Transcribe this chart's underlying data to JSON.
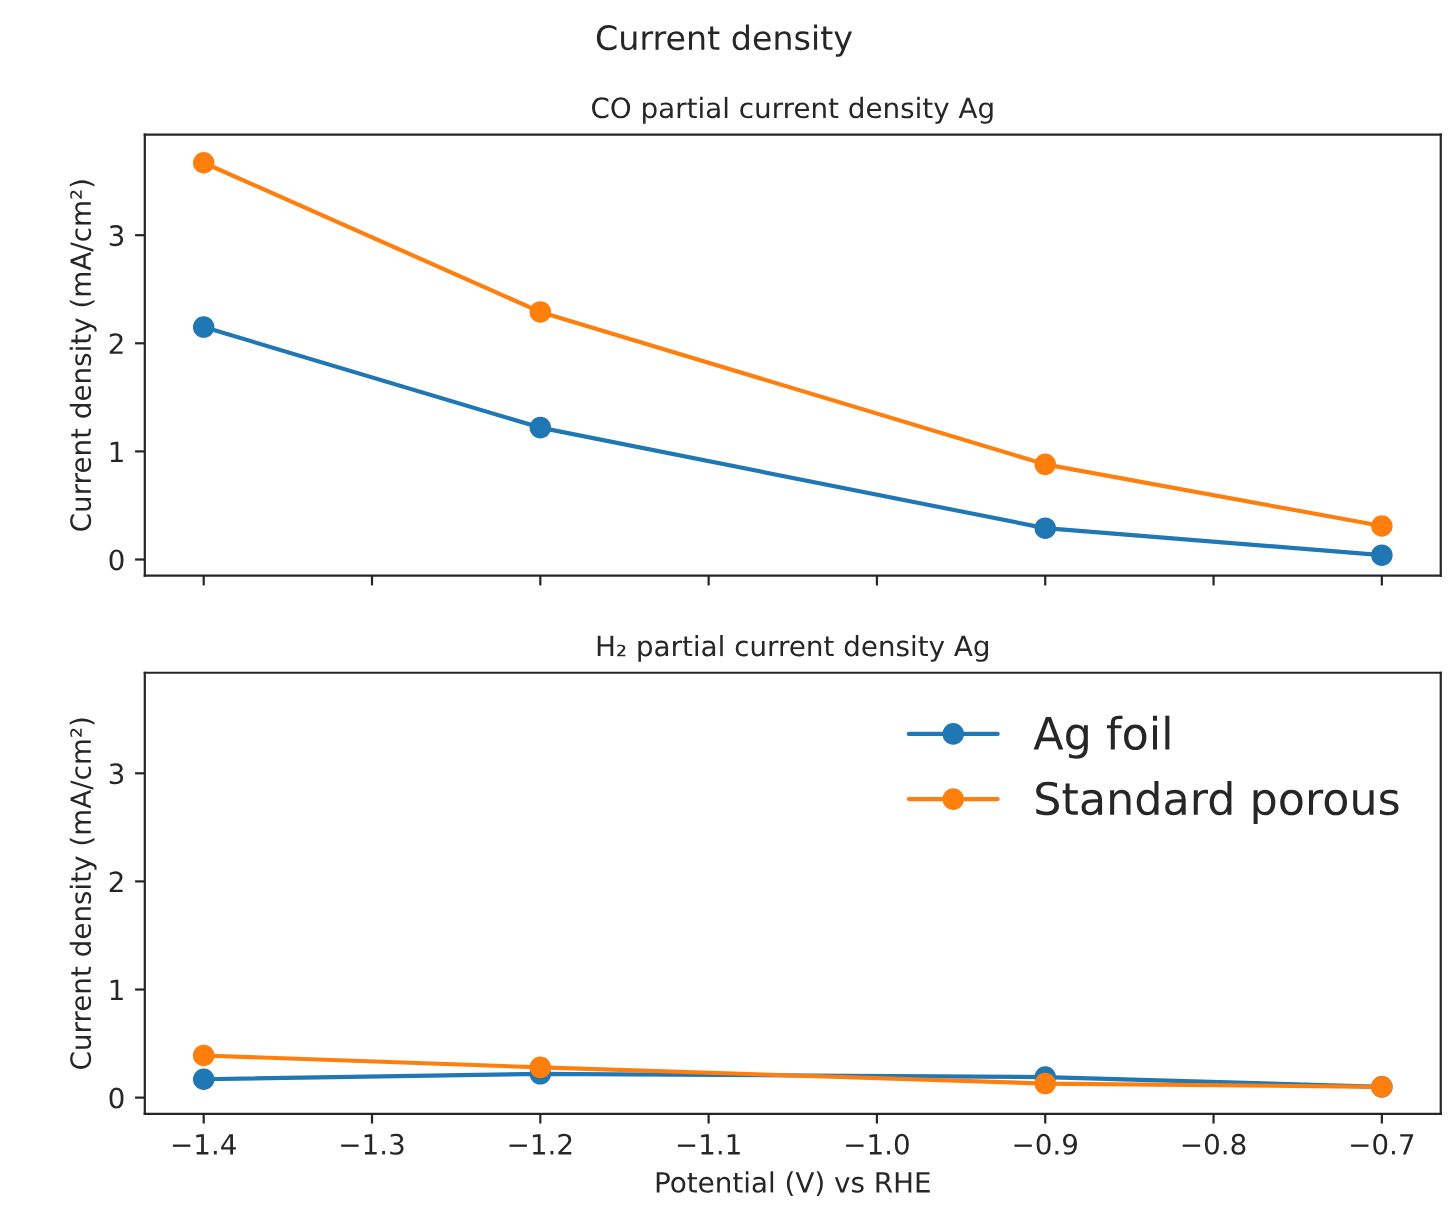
{
  "chart_data": [
    {
      "type": "line",
      "title": "Current density",
      "subtitle": "CO partial current density Ag",
      "ylabel": "Current density (mA/cm²)",
      "x": [
        -1.4,
        -1.2,
        -0.9,
        -0.7
      ],
      "series": [
        {
          "color": "#1f77b4",
          "values": [
            2.15,
            1.22,
            0.29,
            0.04
          ]
        },
        {
          "color": "#ff7f0e",
          "values": [
            3.67,
            2.29,
            0.88,
            0.31
          ]
        }
      ],
      "xlim": [
        -1.435,
        -0.665
      ],
      "xticks": [
        -1.4,
        -1.3,
        -1.2,
        -1.1,
        -1.0,
        -0.9,
        -0.8,
        -0.7
      ],
      "ylim": [
        -0.15,
        3.93
      ],
      "yticks": [
        0,
        1,
        2,
        3
      ],
      "tick_labels": "y",
      "marker": "circle",
      "line_style": "solid",
      "grid": false
    },
    {
      "type": "line",
      "title": "H₂ partial current density Ag",
      "ylabel": "Current density (mA/cm²)",
      "xlabel": "Potential (V) vs RHE",
      "x": [
        -1.4,
        -1.2,
        -0.9,
        -0.7
      ],
      "series": [
        {
          "name": "Ag foil",
          "color": "#1f77b4",
          "values": [
            0.17,
            0.22,
            0.19,
            0.1
          ]
        },
        {
          "name": "Standard porous",
          "color": "#ff7f0e",
          "values": [
            0.39,
            0.28,
            0.13,
            0.1
          ]
        }
      ],
      "xlim": [
        -1.435,
        -0.665
      ],
      "xticks": [
        {
          "value": -1.4,
          "label": "−1.4"
        },
        {
          "value": -1.3,
          "label": "−1.3"
        },
        {
          "value": -1.2,
          "label": "−1.2"
        },
        {
          "value": -1.1,
          "label": "−1.1"
        },
        {
          "value": -1.0,
          "label": "−1.0"
        },
        {
          "value": -0.9,
          "label": "−0.9"
        },
        {
          "value": -0.8,
          "label": "−0.8"
        },
        {
          "value": -0.7,
          "label": "−0.7"
        }
      ],
      "ylim": [
        -0.15,
        3.93
      ],
      "yticks": [
        0,
        1,
        2,
        3
      ],
      "marker": "circle",
      "line_style": "solid",
      "grid": false,
      "legend": "right"
    }
  ]
}
